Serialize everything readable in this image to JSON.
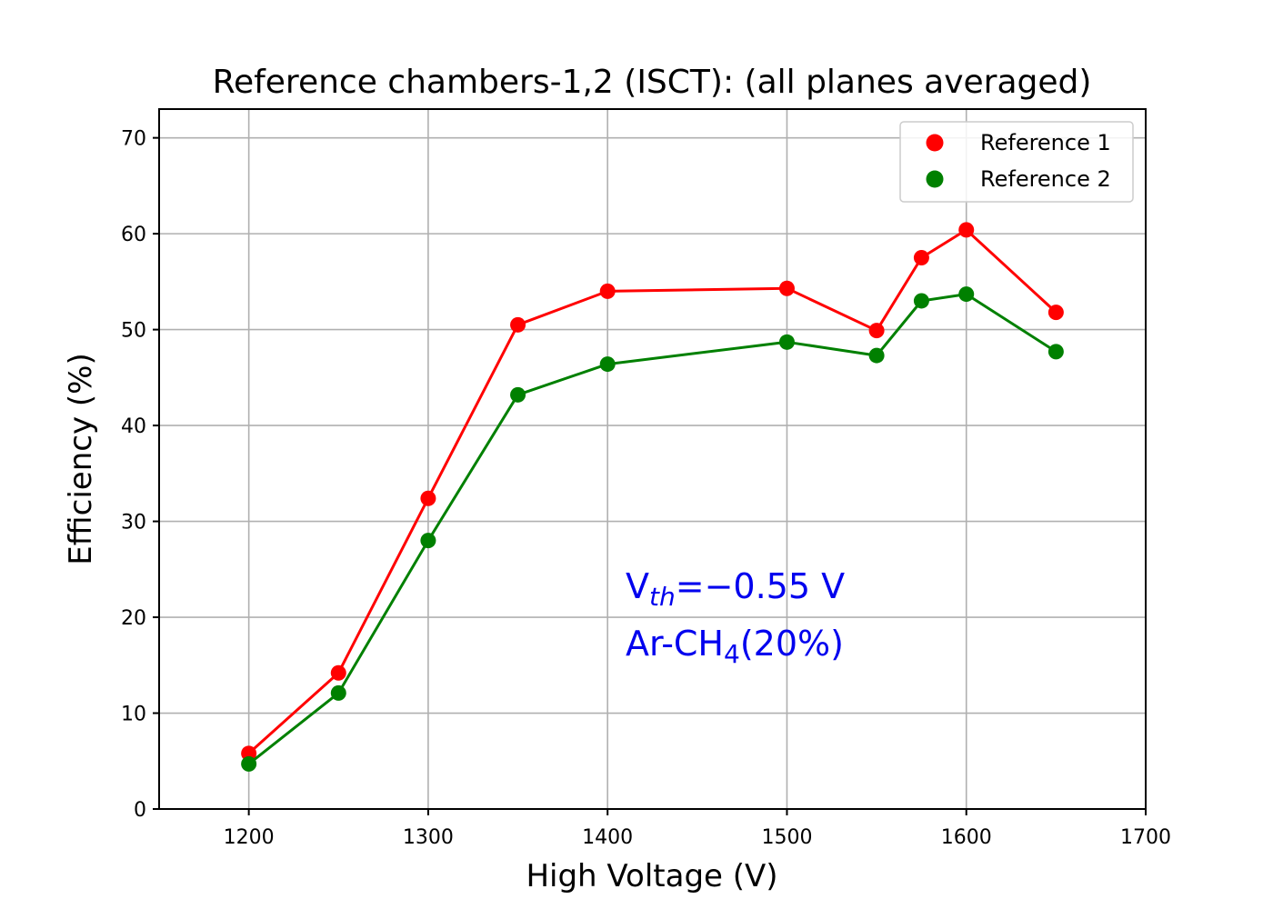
{
  "chart_data": {
    "type": "line",
    "title": "Reference chambers-1,2 (ISCT): (all planes averaged)",
    "xlabel": "High Voltage (V)",
    "ylabel": "Efficiency (%)",
    "xlim": [
      1150,
      1700
    ],
    "ylim": [
      0,
      73
    ],
    "xticks": [
      1200,
      1300,
      1400,
      1500,
      1600,
      1700
    ],
    "yticks": [
      0,
      10,
      20,
      30,
      40,
      50,
      60,
      70
    ],
    "grid": true,
    "legend_position": "top-right",
    "x": [
      1200,
      1250,
      1300,
      1350,
      1400,
      1500,
      1550,
      1575,
      1600,
      1650
    ],
    "series": [
      {
        "name": "Reference 1",
        "color": "#ff0000",
        "marker": "circle",
        "values": [
          5.8,
          14.2,
          32.4,
          50.5,
          54.0,
          54.3,
          49.9,
          57.5,
          60.4,
          51.8
        ]
      },
      {
        "name": "Reference 2",
        "color": "#008000",
        "marker": "circle",
        "values": [
          4.7,
          12.1,
          28.0,
          43.2,
          46.4,
          48.7,
          47.3,
          53.0,
          53.7,
          47.7
        ]
      }
    ],
    "annotations": {
      "color": "#0000ee",
      "line1": {
        "prefix": "V",
        "subscript": "th",
        "suffix": "=−0.55 V"
      },
      "line2": {
        "prefix": "Ar-CH",
        "subscript": "4",
        "suffix": "(20%)"
      }
    }
  }
}
